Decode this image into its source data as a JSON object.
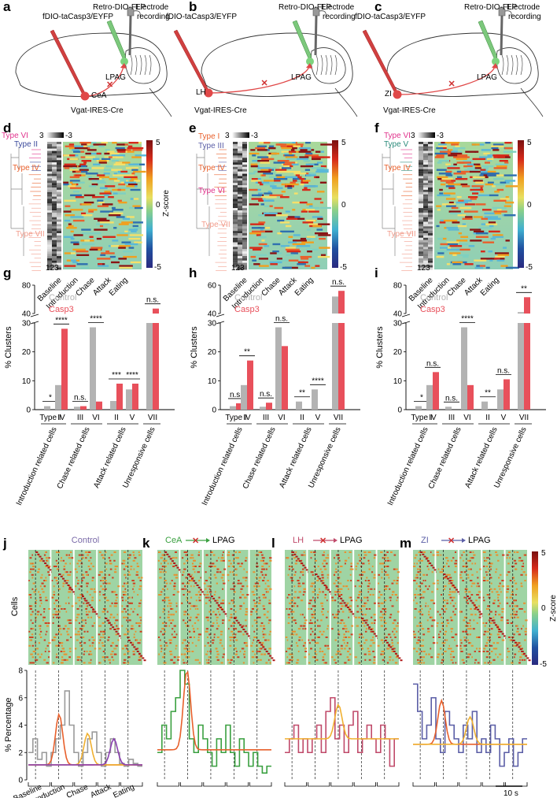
{
  "panels": {
    "a": "a",
    "b": "b",
    "c": "c",
    "d": "d",
    "e": "e",
    "f": "f",
    "g": "g",
    "h": "h",
    "i": "i",
    "j": "j",
    "k": "k",
    "l": "l",
    "m": "m"
  },
  "schematics": [
    {
      "tracer": "fDIO-taCasp3/EYFP",
      "retro": "Retro-DIO-FLP",
      "electrode": "Electrode",
      "recording": "recording",
      "source": "CeA",
      "target": "LPAG",
      "line": "Vgat-IRES-Cre"
    },
    {
      "tracer": "fDIO-taCasp3/EYFP",
      "retro": "Retro-DIO-FLP",
      "electrode": "Electrode",
      "recording": "recording",
      "source": "LH",
      "target": "LPAG",
      "line": "Vgat-IRES-Cre"
    },
    {
      "tracer": "fDIO-taCasp3/EYFP",
      "retro": "Retro-DIO-FLP",
      "electrode": "Electrode",
      "recording": "recording",
      "source": "ZI",
      "target": "LPAG",
      "line": "Vgat-IRES-Cre"
    }
  ],
  "heatmaps": [
    {
      "types": [
        {
          "label": "Type VI",
          "color": "#e0338c"
        },
        {
          "label": "Type II",
          "color": "#3b4a9c"
        },
        {
          "label": "Type IV",
          "color": "#e8602c"
        },
        {
          "label": "Type VII",
          "color": "#f29c8c"
        }
      ]
    },
    {
      "types": [
        {
          "label": "Type I",
          "color": "#e8602c"
        },
        {
          "label": "Type III",
          "color": "#5b5ea6"
        },
        {
          "label": "Type IV",
          "color": "#e8602c"
        },
        {
          "label": "Type VI",
          "color": "#e0338c"
        },
        {
          "label": "Type VII",
          "color": "#f29c8c"
        }
      ]
    },
    {
      "types": [
        {
          "label": "Type VI",
          "color": "#e0338c"
        },
        {
          "label": "Type V",
          "color": "#2a8a7a"
        },
        {
          "label": "Type IV",
          "color": "#e8602c"
        },
        {
          "label": "Type VII",
          "color": "#f29c8c"
        }
      ]
    }
  ],
  "heatmap_common": {
    "gray_scale": {
      "max": "3",
      "min": "-3"
    },
    "gray_ticks": "123",
    "colorbar": {
      "max": "5",
      "mid": "0",
      "min": "-5",
      "label": "Z-score"
    },
    "columns": [
      "Baseline",
      "Introduction",
      "Chase",
      "Attack",
      "Eating"
    ]
  },
  "chart_data": [
    {
      "type": "bar",
      "panel": "g",
      "ylabel": "% Clusters",
      "ylim": [
        0,
        80
      ],
      "axis_break": [
        30,
        40
      ],
      "legend": [
        {
          "name": "Control",
          "color": "#b3b3b3"
        },
        {
          "name": "Casp3",
          "color": "#e8505b"
        }
      ],
      "categories": [
        "Type I",
        "IV",
        "III",
        "VI",
        "II",
        "V",
        "VII"
      ],
      "series": [
        {
          "name": "Control",
          "values": [
            1.2,
            8.5,
            1.0,
            28.5,
            3.0,
            7.0,
            40
          ]
        },
        {
          "name": "Casp3",
          "values": [
            0,
            28,
            1.2,
            2.8,
            9,
            9,
            47
          ]
        }
      ],
      "significance": [
        "*",
        "****",
        "n.s.",
        "****",
        "***",
        "****",
        "n.s."
      ],
      "groups": [
        "Introduction related cells",
        "Chase related cells",
        "Attack related cells",
        "Unresponsive cells"
      ]
    },
    {
      "type": "bar",
      "panel": "h",
      "ylabel": "% Clusters",
      "ylim": [
        0,
        60
      ],
      "axis_break": [
        30,
        40
      ],
      "legend": [
        {
          "name": "Control",
          "color": "#b3b3b3"
        },
        {
          "name": "Casp3",
          "color": "#e8505b"
        }
      ],
      "categories": [
        "Type I",
        "IV",
        "III",
        "VI",
        "II",
        "V",
        "VII"
      ],
      "series": [
        {
          "name": "Control",
          "values": [
            1.2,
            8.5,
            1.0,
            28.5,
            2.8,
            7.0,
            52
          ]
        },
        {
          "name": "Casp3",
          "values": [
            2.2,
            17,
            2.4,
            22,
            0,
            0,
            56
          ]
        }
      ],
      "significance": [
        "n.s.",
        "**",
        "n.s.",
        "n.s.",
        "**",
        "****",
        "n.s."
      ],
      "groups": [
        "Introduction related cells",
        "Chase related cells",
        "Attack related cells",
        "Unresponsive cells"
      ]
    },
    {
      "type": "bar",
      "panel": "i",
      "ylabel": "% Clusters",
      "ylim": [
        0,
        80
      ],
      "axis_break": [
        30,
        40
      ],
      "legend": [
        {
          "name": "Control",
          "color": "#b3b3b3"
        },
        {
          "name": "Casp3",
          "color": "#e8505b"
        }
      ],
      "categories": [
        "Type I",
        "IV",
        "III",
        "VI",
        "II",
        "V",
        "VII"
      ],
      "series": [
        {
          "name": "Control",
          "values": [
            1.2,
            8.5,
            1.0,
            28.5,
            2.8,
            7.0,
            42
          ]
        },
        {
          "name": "Casp3",
          "values": [
            0,
            13,
            0,
            8.5,
            0,
            10.5,
            63
          ]
        }
      ],
      "significance": [
        "*",
        "n.s.",
        "n.s.",
        "****",
        "**",
        "n.s.",
        "**"
      ],
      "groups": [
        "Introduction related cells",
        "Chase related cells",
        "Attack related cells",
        "Unresponsive cells"
      ]
    },
    {
      "type": "line",
      "panel": "j",
      "title": "Control",
      "ylabel": "% Percentage",
      "ylim": [
        0,
        8
      ],
      "yticks": [
        "0",
        "2",
        "4",
        "6",
        "8"
      ],
      "color": "#9a9a9a",
      "fit_colors": [
        "#e8602c",
        "#f0b030",
        "#8a3fb0"
      ],
      "x_labels": [
        "Baseline",
        "Introduction",
        "Chase",
        "Attack",
        "Eating"
      ],
      "values": [
        2,
        3,
        1.5,
        2,
        1,
        2,
        3,
        4,
        6.5,
        4,
        2,
        1,
        2,
        3,
        3.5,
        2,
        1,
        2,
        3,
        2,
        1.2,
        1,
        1.5,
        1.2,
        1
      ],
      "heat_ylabel": "Cells"
    },
    {
      "type": "line",
      "panel": "k",
      "title": "CeA",
      "title_target": "LPAG",
      "title_color": "#3aa040",
      "color": "#3aa040",
      "fit_colors": [
        "#e8602c"
      ],
      "values": [
        2,
        4,
        3,
        5,
        6,
        8,
        7,
        3,
        2,
        4,
        3,
        2,
        1,
        3,
        2,
        4,
        2,
        1,
        3,
        2,
        1,
        2,
        1,
        0.5,
        1
      ]
    },
    {
      "type": "line",
      "panel": "l",
      "title": "LH",
      "title_target": "LPAG",
      "title_color": "#c04a6a",
      "color": "#c04a6a",
      "fit_colors": [
        "#f0b030"
      ],
      "values": [
        2,
        3,
        4,
        2,
        3,
        2,
        3,
        4,
        2,
        5,
        6,
        3,
        4,
        2,
        4,
        5,
        2,
        3,
        4,
        3,
        2,
        4,
        3,
        1,
        3
      ]
    },
    {
      "type": "line",
      "panel": "m",
      "title": "ZI",
      "title_target": "LPAG",
      "title_color": "#5b5ea6",
      "color": "#5b5ea6",
      "fit_colors": [
        "#e8602c",
        "#f0b030"
      ],
      "values": [
        7,
        5,
        3,
        4,
        6,
        3,
        2,
        5,
        4,
        3,
        2,
        4,
        3,
        5,
        2,
        3,
        2,
        4,
        3,
        1,
        2,
        3,
        1,
        2,
        3
      ],
      "scale_label": "10 s",
      "colorbar": {
        "max": "5",
        "mid": "0",
        "min": "-5",
        "label": "Z-score"
      }
    }
  ]
}
